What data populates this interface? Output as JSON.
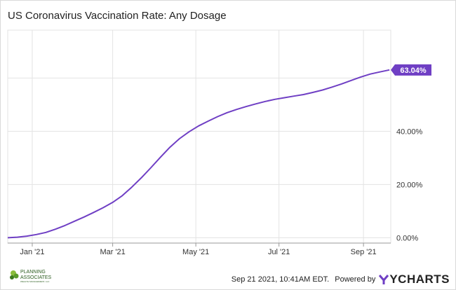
{
  "title": "US Coronavirus Vaccination Rate: Any Dosage",
  "chart_data": {
    "type": "line",
    "title": "US Coronavirus Vaccination Rate: Any Dosage",
    "xlabel": "",
    "ylabel": "",
    "x_range": [
      "2020-12-14",
      "2021-09-21"
    ],
    "ylim": [
      -2,
      78
    ],
    "grid": true,
    "x_ticks": [
      {
        "date": "2021-01-01",
        "label": "Jan '21"
      },
      {
        "date": "2021-03-01",
        "label": "Mar '21"
      },
      {
        "date": "2021-05-01",
        "label": "May '21"
      },
      {
        "date": "2021-07-01",
        "label": "Jul '21"
      },
      {
        "date": "2021-09-01",
        "label": "Sep '21"
      }
    ],
    "y_ticks": [
      {
        "value": 0,
        "label": "0.00%"
      },
      {
        "value": 20,
        "label": "20.00%"
      },
      {
        "value": 40,
        "label": "40.00%"
      },
      {
        "value": 60,
        "label": ""
      }
    ],
    "series": [
      {
        "color": "#6f3fc4",
        "end_label": "63.04%",
        "points": [
          [
            "2020-12-14",
            0.0
          ],
          [
            "2020-12-21",
            0.2
          ],
          [
            "2020-12-28",
            0.6
          ],
          [
            "2021-01-04",
            1.2
          ],
          [
            "2021-01-11",
            2.0
          ],
          [
            "2021-01-18",
            3.2
          ],
          [
            "2021-01-25",
            4.6
          ],
          [
            "2021-02-01",
            6.2
          ],
          [
            "2021-02-08",
            7.8
          ],
          [
            "2021-02-15",
            9.5
          ],
          [
            "2021-02-22",
            11.3
          ],
          [
            "2021-03-01",
            13.3
          ],
          [
            "2021-03-08",
            15.8
          ],
          [
            "2021-03-15",
            19.0
          ],
          [
            "2021-03-22",
            22.5
          ],
          [
            "2021-03-29",
            26.3
          ],
          [
            "2021-04-05",
            30.2
          ],
          [
            "2021-04-12",
            34.0
          ],
          [
            "2021-04-19",
            37.2
          ],
          [
            "2021-04-26",
            39.8
          ],
          [
            "2021-05-03",
            42.0
          ],
          [
            "2021-05-10",
            43.8
          ],
          [
            "2021-05-17",
            45.5
          ],
          [
            "2021-05-24",
            47.0
          ],
          [
            "2021-05-31",
            48.2
          ],
          [
            "2021-06-07",
            49.3
          ],
          [
            "2021-06-14",
            50.3
          ],
          [
            "2021-06-21",
            51.2
          ],
          [
            "2021-06-28",
            52.0
          ],
          [
            "2021-07-05",
            52.6
          ],
          [
            "2021-07-12",
            53.2
          ],
          [
            "2021-07-19",
            53.8
          ],
          [
            "2021-07-26",
            54.6
          ],
          [
            "2021-08-02",
            55.5
          ],
          [
            "2021-08-09",
            56.6
          ],
          [
            "2021-08-16",
            57.8
          ],
          [
            "2021-08-23",
            59.1
          ],
          [
            "2021-08-30",
            60.4
          ],
          [
            "2021-09-06",
            61.5
          ],
          [
            "2021-09-13",
            62.3
          ],
          [
            "2021-09-20",
            63.04
          ]
        ]
      }
    ]
  },
  "footer": {
    "timestamp": "Sep 21 2021, 10:41AM EDT.",
    "powered_by": "Powered by",
    "brand": "YCHARTS",
    "brand_color": "#6f3fc4",
    "logo_name": "PLANNING ASSOCIATES",
    "logo_line1": "PLANNING",
    "logo_line2": "ASSOCIATES",
    "logo_tagline": "WEALTH MANAGEMENT, LLC"
  }
}
